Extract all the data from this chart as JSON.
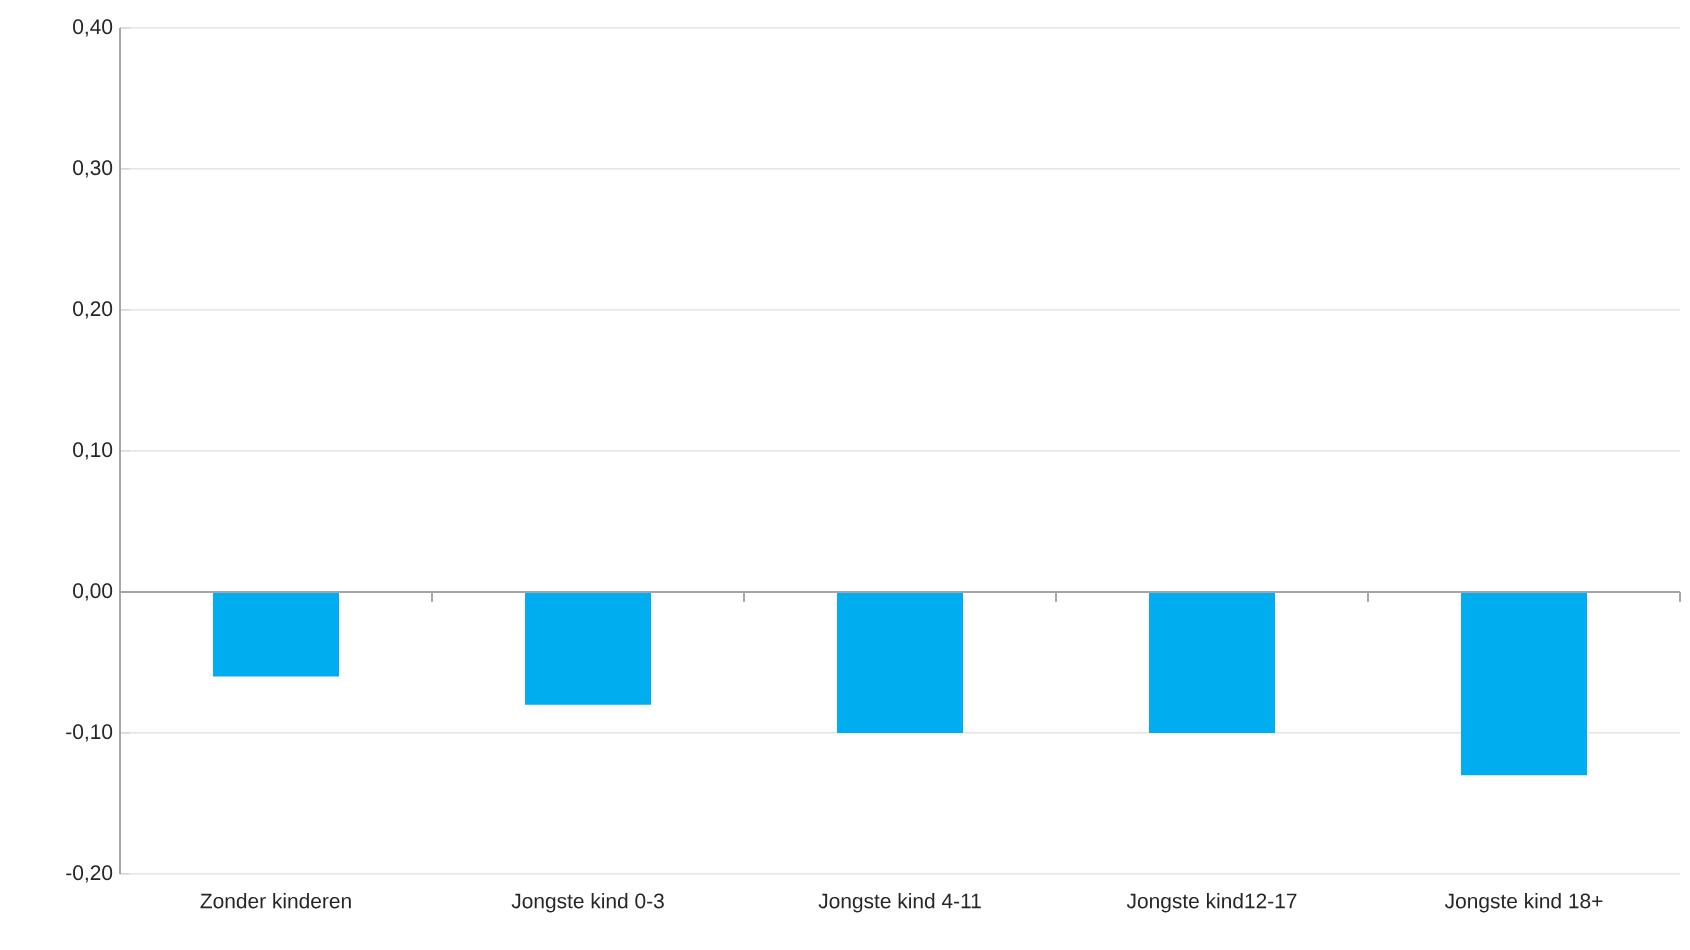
{
  "chart_data": {
    "type": "bar",
    "categories": [
      "Zonder kinderen",
      "Jongste kind 0-3",
      "Jongste kind 4-11",
      "Jongste kind12-17",
      "Jongste kind 18+"
    ],
    "values": [
      -0.06,
      -0.08,
      -0.1,
      -0.1,
      -0.13
    ],
    "color": "#00aeef",
    "ylim": [
      -0.2,
      0.4
    ],
    "yticks": [
      {
        "value": -0.2,
        "label": "-0,20"
      },
      {
        "value": -0.1,
        "label": "-0,10"
      },
      {
        "value": 0.0,
        "label": "0,00"
      },
      {
        "value": 0.1,
        "label": "0,10"
      },
      {
        "value": 0.2,
        "label": "0,20"
      },
      {
        "value": 0.3,
        "label": "0,30"
      },
      {
        "value": 0.4,
        "label": "0,40"
      }
    ],
    "grid": "y"
  }
}
